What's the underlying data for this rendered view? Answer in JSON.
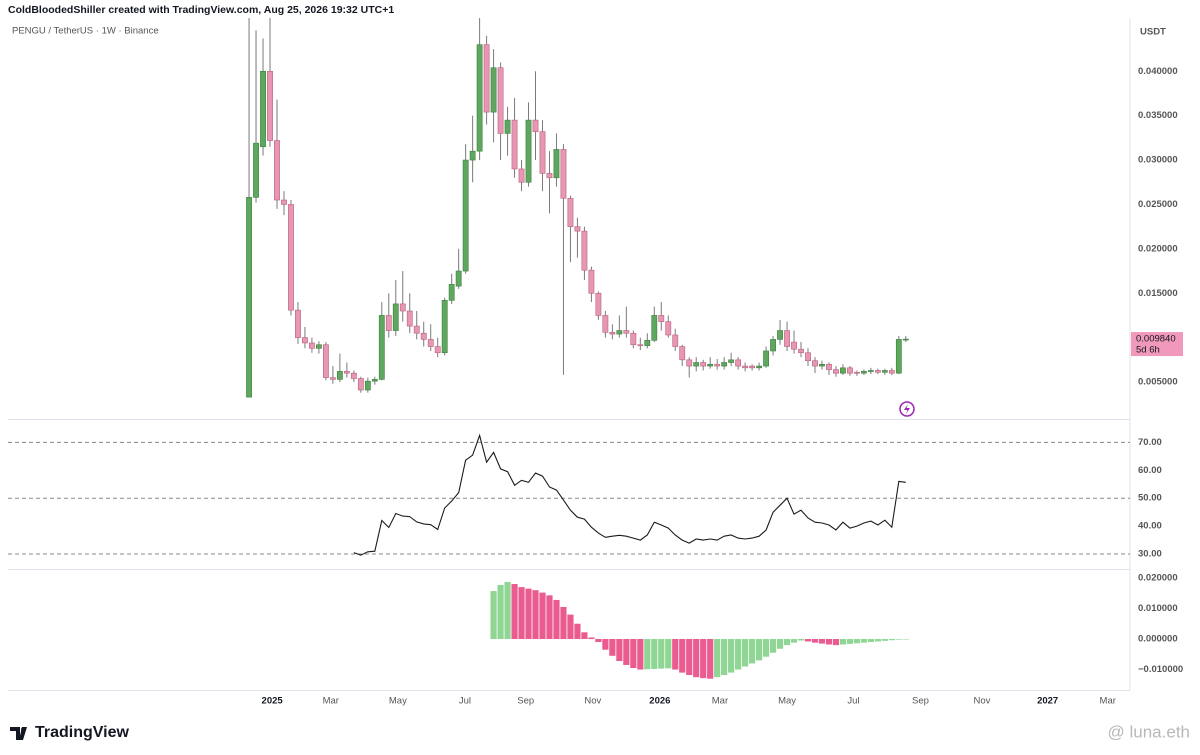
{
  "header": {
    "title": "ColdBloodedShiller created with TradingView.com, Aug 25, 2026 19:32 UTC+1",
    "symbol": "PENGU / TetherUS · 1W · Binance",
    "currency": "USDT"
  },
  "footer": {
    "brand": "TradingView",
    "watermark": "@ luna.eth"
  },
  "x_axis": {
    "xlim": [
      -34.5,
      125.8
    ],
    "xticks": [
      {
        "value": 3.3,
        "label": "2025"
      },
      {
        "value": 11.7,
        "label": "Mar"
      },
      {
        "value": 21.3,
        "label": "May"
      },
      {
        "value": 30.9,
        "label": "Jul"
      },
      {
        "value": 39.6,
        "label": "Sep"
      },
      {
        "value": 49.2,
        "label": "Nov"
      },
      {
        "value": 58.8,
        "label": "2026"
      },
      {
        "value": 67.4,
        "label": "Mar"
      },
      {
        "value": 77.0,
        "label": "May"
      },
      {
        "value": 86.5,
        "label": "Jul"
      },
      {
        "value": 96.1,
        "label": "Sep"
      },
      {
        "value": 104.9,
        "label": "Nov"
      },
      {
        "value": 114.3,
        "label": "2027"
      },
      {
        "value": 122.9,
        "label": "Mar"
      }
    ],
    "bold_labels": [
      "2025",
      "2026",
      "2027"
    ]
  },
  "chart_data": [
    {
      "type": "candlestick",
      "up_color": "#5ea75f",
      "down_color": "#e796b4",
      "ylim": [
        0.00095,
        0.046
      ],
      "yticks": [
        {
          "value": 0.005,
          "label": "0.005000"
        },
        {
          "value": 0.015,
          "label": "0.015000"
        },
        {
          "value": 0.02,
          "label": "0.020000"
        },
        {
          "value": 0.025,
          "label": "0.025000"
        },
        {
          "value": 0.03,
          "label": "0.030000"
        },
        {
          "value": 0.035,
          "label": "0.035000"
        },
        {
          "value": 0.04,
          "label": "0.040000"
        }
      ],
      "last_price": {
        "value": 0.00984,
        "label": "0.009840"
      },
      "countdown": "5d 6h",
      "label_color": "#f199bb",
      "ohlc": [
        [
          0.0033,
          0.046,
          0.0033,
          0.0258
        ],
        [
          0.0258,
          0.0446,
          0.0252,
          0.0319
        ],
        [
          0.0315,
          0.0437,
          0.0305,
          0.04
        ],
        [
          0.04,
          0.046,
          0.0315,
          0.0322
        ],
        [
          0.0322,
          0.0368,
          0.0245,
          0.0255
        ],
        [
          0.0255,
          0.0265,
          0.0238,
          0.025
        ],
        [
          0.025,
          0.0255,
          0.0125,
          0.0131
        ],
        [
          0.0131,
          0.014,
          0.0093,
          0.01
        ],
        [
          0.01,
          0.0112,
          0.0088,
          0.0094
        ],
        [
          0.0094,
          0.01,
          0.0083,
          0.0088
        ],
        [
          0.0088,
          0.0096,
          0.0082,
          0.0092
        ],
        [
          0.0092,
          0.0095,
          0.0052,
          0.0055
        ],
        [
          0.0055,
          0.0068,
          0.0048,
          0.0053
        ],
        [
          0.0053,
          0.0082,
          0.005,
          0.0062
        ],
        [
          0.0062,
          0.0072,
          0.0055,
          0.006
        ],
        [
          0.006,
          0.0063,
          0.005,
          0.0054
        ],
        [
          0.0054,
          0.0056,
          0.0038,
          0.0041
        ],
        [
          0.0041,
          0.0055,
          0.0038,
          0.0051
        ],
        [
          0.0051,
          0.0056,
          0.0047,
          0.0053
        ],
        [
          0.0053,
          0.014,
          0.0052,
          0.0125
        ],
        [
          0.0125,
          0.015,
          0.01,
          0.0108
        ],
        [
          0.0108,
          0.0165,
          0.0102,
          0.0138
        ],
        [
          0.0138,
          0.0175,
          0.0118,
          0.013
        ],
        [
          0.013,
          0.015,
          0.0105,
          0.0113
        ],
        [
          0.0113,
          0.013,
          0.0098,
          0.0105
        ],
        [
          0.0105,
          0.0118,
          0.009,
          0.0098
        ],
        [
          0.0098,
          0.0115,
          0.0085,
          0.009
        ],
        [
          0.009,
          0.01,
          0.0078,
          0.0083
        ],
        [
          0.0083,
          0.0145,
          0.008,
          0.0142
        ],
        [
          0.0142,
          0.0172,
          0.0138,
          0.016
        ],
        [
          0.0158,
          0.02,
          0.0155,
          0.0175
        ],
        [
          0.0175,
          0.0318,
          0.0172,
          0.03
        ],
        [
          0.03,
          0.035,
          0.0275,
          0.031
        ],
        [
          0.031,
          0.046,
          0.03,
          0.043
        ],
        [
          0.043,
          0.044,
          0.034,
          0.0354
        ],
        [
          0.0354,
          0.0425,
          0.032,
          0.0404
        ],
        [
          0.0404,
          0.041,
          0.03,
          0.033
        ],
        [
          0.033,
          0.036,
          0.0305,
          0.0345
        ],
        [
          0.0345,
          0.037,
          0.028,
          0.029
        ],
        [
          0.029,
          0.03,
          0.0265,
          0.0275
        ],
        [
          0.0275,
          0.0365,
          0.027,
          0.0345
        ],
        [
          0.0345,
          0.04,
          0.03,
          0.0332
        ],
        [
          0.0332,
          0.0345,
          0.0265,
          0.0285
        ],
        [
          0.0285,
          0.031,
          0.024,
          0.028
        ],
        [
          0.028,
          0.033,
          0.027,
          0.0312
        ],
        [
          0.0312,
          0.0318,
          0.0058,
          0.0257
        ],
        [
          0.0257,
          0.026,
          0.0185,
          0.0225
        ],
        [
          0.0225,
          0.0235,
          0.019,
          0.022
        ],
        [
          0.022,
          0.0225,
          0.0165,
          0.0176
        ],
        [
          0.0176,
          0.018,
          0.014,
          0.015
        ],
        [
          0.015,
          0.0152,
          0.012,
          0.0125
        ],
        [
          0.0125,
          0.013,
          0.01,
          0.0106
        ],
        [
          0.0106,
          0.0115,
          0.0098,
          0.0104
        ],
        [
          0.0104,
          0.0125,
          0.01,
          0.0108
        ],
        [
          0.0108,
          0.0135,
          0.01,
          0.0105
        ],
        [
          0.0105,
          0.0108,
          0.0088,
          0.0092
        ],
        [
          0.0092,
          0.01,
          0.0086,
          0.0091
        ],
        [
          0.0091,
          0.0105,
          0.0088,
          0.0097
        ],
        [
          0.0097,
          0.0135,
          0.0095,
          0.0125
        ],
        [
          0.0125,
          0.014,
          0.0108,
          0.0118
        ],
        [
          0.0118,
          0.0125,
          0.01,
          0.0103
        ],
        [
          0.0103,
          0.011,
          0.0085,
          0.009
        ],
        [
          0.009,
          0.0092,
          0.0068,
          0.0075
        ],
        [
          0.0075,
          0.0078,
          0.0055,
          0.0068
        ],
        [
          0.0068,
          0.0078,
          0.0062,
          0.0072
        ],
        [
          0.0072,
          0.0075,
          0.0063,
          0.0068
        ],
        [
          0.0068,
          0.0078,
          0.0065,
          0.007
        ],
        [
          0.007,
          0.0076,
          0.0064,
          0.0068
        ],
        [
          0.0068,
          0.0078,
          0.0064,
          0.0072
        ],
        [
          0.0072,
          0.0083,
          0.0068,
          0.0075
        ],
        [
          0.0075,
          0.0078,
          0.0064,
          0.0068
        ],
        [
          0.0068,
          0.0072,
          0.0062,
          0.0066
        ],
        [
          0.0068,
          0.007,
          0.0063,
          0.0066
        ],
        [
          0.0066,
          0.0072,
          0.0063,
          0.0068
        ],
        [
          0.0068,
          0.009,
          0.0066,
          0.0085
        ],
        [
          0.0085,
          0.0102,
          0.008,
          0.0098
        ],
        [
          0.0098,
          0.012,
          0.0092,
          0.0108
        ],
        [
          0.0108,
          0.0118,
          0.0085,
          0.009
        ],
        [
          0.0095,
          0.0108,
          0.0082,
          0.0087
        ],
        [
          0.0087,
          0.0095,
          0.0078,
          0.0083
        ],
        [
          0.0083,
          0.0088,
          0.0068,
          0.0074
        ],
        [
          0.0074,
          0.0078,
          0.006,
          0.0068
        ],
        [
          0.0068,
          0.0074,
          0.0064,
          0.007
        ],
        [
          0.007,
          0.0072,
          0.0058,
          0.0064
        ],
        [
          0.0064,
          0.0068,
          0.0056,
          0.006
        ],
        [
          0.006,
          0.007,
          0.0058,
          0.0066
        ],
        [
          0.0066,
          0.0068,
          0.0057,
          0.006
        ],
        [
          0.0061,
          0.0063,
          0.0057,
          0.006
        ],
        [
          0.006,
          0.0064,
          0.0058,
          0.0062
        ],
        [
          0.0062,
          0.0066,
          0.0059,
          0.0063
        ],
        [
          0.0063,
          0.0065,
          0.0059,
          0.0061
        ],
        [
          0.0061,
          0.0065,
          0.0058,
          0.0063
        ],
        [
          0.0063,
          0.0066,
          0.0058,
          0.006
        ],
        [
          0.006,
          0.0102,
          0.0059,
          0.0098
        ],
        [
          0.0098,
          0.0102,
          0.0095,
          0.00984
        ]
      ]
    },
    {
      "type": "line",
      "color": "#1c1c1c",
      "ylim": [
        25,
        78
      ],
      "yticks": [
        {
          "value": 30,
          "label": "30.00"
        },
        {
          "value": 40,
          "label": "40.00"
        },
        {
          "value": 50,
          "label": "50.00"
        },
        {
          "value": 60,
          "label": "60.00"
        },
        {
          "value": 70,
          "label": "70.00"
        }
      ],
      "bands": [
        70,
        50,
        30
      ],
      "values": [
        null,
        null,
        null,
        null,
        null,
        null,
        null,
        null,
        null,
        null,
        null,
        null,
        null,
        null,
        null,
        30.5,
        29.6,
        30.8,
        31,
        42,
        39.5,
        44.5,
        43.6,
        43.4,
        41.5,
        40.8,
        40.5,
        38.8,
        46.5,
        49,
        52,
        63.6,
        65.4,
        72.5,
        62.9,
        66.4,
        60.5,
        59.5,
        54.6,
        56.4,
        55.7,
        59,
        57.9,
        54,
        52.9,
        49.3,
        45.7,
        43.2,
        42.5,
        39.6,
        37.5,
        36,
        36.4,
        36.7,
        36.4,
        35.7,
        35,
        36.8,
        41.4,
        40.4,
        39.3,
        36.8,
        35,
        33.9,
        35.4,
        35,
        35.4,
        35,
        36.4,
        36.8,
        35.7,
        35.4,
        35.7,
        36.4,
        38.6,
        45,
        47.5,
        50,
        44.3,
        45.7,
        42.9,
        41.4,
        41.1,
        40.4,
        38.6,
        41.4,
        39.3,
        40,
        41.1,
        41.8,
        40.4,
        42.1,
        39.6,
        56,
        55.7
      ]
    },
    {
      "type": "bar",
      "up_color": "#8fd694",
      "down_color": "#ea5b90",
      "ylim": [
        -0.0167,
        0.0226
      ],
      "yticks": [
        {
          "value": -0.01,
          "label": "−0.010000"
        },
        {
          "value": 0,
          "label": "0.000000"
        },
        {
          "value": 0.01,
          "label": "0.010000"
        },
        {
          "value": 0.02,
          "label": "0.020000"
        }
      ],
      "values": [
        null,
        null,
        null,
        null,
        null,
        null,
        null,
        null,
        null,
        null,
        null,
        null,
        null,
        null,
        null,
        null,
        null,
        null,
        null,
        null,
        null,
        null,
        null,
        null,
        null,
        null,
        null,
        null,
        null,
        null,
        null,
        null,
        null,
        null,
        null,
        0.0157,
        0.0177,
        0.0187,
        0.018,
        0.017,
        0.0165,
        0.016,
        0.0152,
        0.0143,
        0.0128,
        0.0105,
        0.008,
        0.005,
        0.0022,
        0.0005,
        -0.001,
        -0.0035,
        -0.0055,
        -0.0072,
        -0.0085,
        -0.0095,
        -0.01,
        -0.0099,
        -0.0098,
        -0.0097,
        -0.0096,
        -0.01,
        -0.011,
        -0.0118,
        -0.0125,
        -0.0128,
        -0.013,
        -0.0125,
        -0.0118,
        -0.011,
        -0.01,
        -0.009,
        -0.008,
        -0.007,
        -0.0058,
        -0.0045,
        -0.0032,
        -0.002,
        -0.0012,
        -0.0005,
        -0.0008,
        -0.0012,
        -0.0015,
        -0.0018,
        -0.002,
        -0.0018,
        -0.0016,
        -0.0014,
        -0.0012,
        -0.001,
        -0.0008,
        -0.0006,
        -0.0004,
        -0.0002,
        -0.0001
      ]
    }
  ]
}
